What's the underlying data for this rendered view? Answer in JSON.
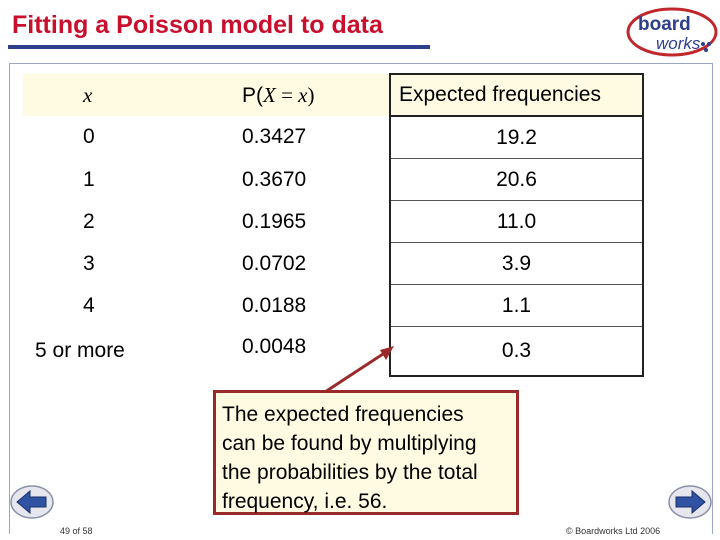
{
  "title": "Fitting a Poisson model to data",
  "logo": {
    "line1": "board",
    "line2": "works"
  },
  "table": {
    "headers": {
      "x": "x",
      "p_pre": "P(",
      "p_X": "X",
      "p_mid": " = ",
      "p_x": "x",
      "p_post": ")",
      "expected": "Expected frequencies"
    },
    "rows": [
      {
        "x": "0",
        "p": "0.3427",
        "e": "19.2"
      },
      {
        "x": "1",
        "p": "0.3670",
        "e": "20.6"
      },
      {
        "x": "2",
        "p": "0.1965",
        "e": "11.0"
      },
      {
        "x": "3",
        "p": "0.0702",
        "e": "3.9"
      },
      {
        "x": "4",
        "p": "0.0188",
        "e": "1.1"
      },
      {
        "x": "5 or more",
        "p": "0.0048",
        "e": "0.3"
      }
    ]
  },
  "note": {
    "l1": "The expected frequencies",
    "l2": "can be found by multiplying",
    "l3": "the probabilities by the total",
    "l4": "frequency, i.e. 56."
  },
  "footer": {
    "page": "49 of 58",
    "copyright": "© Boardworks Ltd 2006"
  },
  "colors": {
    "title": "#c8102e",
    "underline": "#2e3f8c",
    "header_bg": "#fffbe2",
    "note_border": "#9a2a2a",
    "nav_arrow": "#2f52a3"
  },
  "icons": [
    "back-arrow-icon",
    "forward-arrow-icon",
    "boardworks-logo"
  ]
}
